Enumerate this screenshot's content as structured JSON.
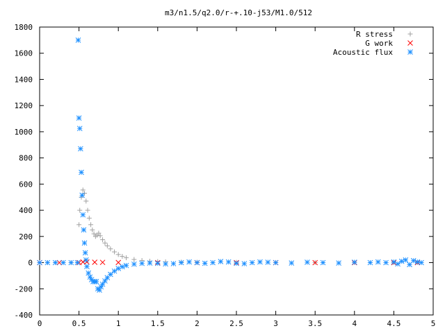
{
  "chart_data": {
    "type": "scatter",
    "title": "m3/n1.5/q2.0/r-+.10-j53/M1.0/512",
    "xlabel": "",
    "ylabel": "",
    "xlim": [
      0,
      5
    ],
    "ylim": [
      -400,
      1800
    ],
    "x_ticks": [
      "0",
      "0.5",
      "1",
      "1.5",
      "2",
      "2.5",
      "3",
      "3.5",
      "4",
      "4.5",
      "5"
    ],
    "y_ticks": [
      "-400",
      "-200",
      "0",
      "200",
      "400",
      "600",
      "800",
      "1000",
      "1200",
      "1400",
      "1600",
      "1800"
    ],
    "grid": false,
    "legend_position": "top-right",
    "series": [
      {
        "name": "R stress",
        "marker": "plus",
        "color": "#a0a0a0",
        "points": [
          [
            0.0,
            0
          ],
          [
            0.1,
            0
          ],
          [
            0.2,
            0
          ],
          [
            0.3,
            0
          ],
          [
            0.4,
            0
          ],
          [
            0.48,
            0
          ],
          [
            0.5,
            290
          ],
          [
            0.51,
            400
          ],
          [
            0.53,
            500
          ],
          [
            0.55,
            555
          ],
          [
            0.57,
            530
          ],
          [
            0.59,
            470
          ],
          [
            0.61,
            400
          ],
          [
            0.63,
            340
          ],
          [
            0.65,
            290
          ],
          [
            0.67,
            250
          ],
          [
            0.69,
            220
          ],
          [
            0.71,
            200
          ],
          [
            0.73,
            210
          ],
          [
            0.75,
            225
          ],
          [
            0.77,
            205
          ],
          [
            0.8,
            175
          ],
          [
            0.83,
            150
          ],
          [
            0.86,
            128
          ],
          [
            0.9,
            105
          ],
          [
            0.95,
            82
          ],
          [
            1.0,
            62
          ],
          [
            1.05,
            48
          ],
          [
            1.1,
            37
          ],
          [
            1.2,
            24
          ],
          [
            1.3,
            16
          ],
          [
            1.4,
            11
          ],
          [
            1.5,
            8
          ],
          [
            1.6,
            6
          ],
          [
            1.8,
            4
          ],
          [
            2.0,
            3
          ],
          [
            2.5,
            2
          ],
          [
            3.0,
            1
          ],
          [
            3.5,
            1
          ],
          [
            4.0,
            1
          ],
          [
            4.5,
            1
          ],
          [
            4.8,
            1
          ]
        ]
      },
      {
        "name": "G work",
        "marker": "cross",
        "color": "#ff0000",
        "points": [
          [
            0.0,
            0
          ],
          [
            0.25,
            0
          ],
          [
            0.5,
            0
          ],
          [
            0.55,
            5
          ],
          [
            0.6,
            5
          ],
          [
            0.7,
            3
          ],
          [
            0.8,
            2
          ],
          [
            1.0,
            1
          ],
          [
            1.5,
            0
          ],
          [
            2.0,
            0
          ],
          [
            2.5,
            0
          ],
          [
            3.0,
            0
          ],
          [
            3.5,
            0
          ],
          [
            4.0,
            0
          ],
          [
            4.5,
            0
          ],
          [
            4.8,
            0
          ]
        ]
      },
      {
        "name": "Acoustic flux",
        "marker": "star",
        "color": "#1e90ff",
        "points": [
          [
            0.0,
            0
          ],
          [
            0.1,
            0
          ],
          [
            0.2,
            0
          ],
          [
            0.3,
            0
          ],
          [
            0.4,
            0
          ],
          [
            0.48,
            0
          ],
          [
            0.49,
            1700
          ],
          [
            0.5,
            1105
          ],
          [
            0.51,
            1025
          ],
          [
            0.52,
            870
          ],
          [
            0.53,
            690
          ],
          [
            0.54,
            515
          ],
          [
            0.55,
            365
          ],
          [
            0.56,
            250
          ],
          [
            0.57,
            150
          ],
          [
            0.58,
            75
          ],
          [
            0.59,
            20
          ],
          [
            0.6,
            -30
          ],
          [
            0.62,
            -80
          ],
          [
            0.64,
            -110
          ],
          [
            0.66,
            -130
          ],
          [
            0.68,
            -145
          ],
          [
            0.7,
            -145
          ],
          [
            0.72,
            -145
          ],
          [
            0.74,
            -200
          ],
          [
            0.76,
            -210
          ],
          [
            0.78,
            -185
          ],
          [
            0.8,
            -165
          ],
          [
            0.83,
            -140
          ],
          [
            0.86,
            -115
          ],
          [
            0.9,
            -90
          ],
          [
            0.95,
            -65
          ],
          [
            1.0,
            -45
          ],
          [
            1.05,
            -32
          ],
          [
            1.1,
            -22
          ],
          [
            1.2,
            -12
          ],
          [
            1.3,
            -6
          ],
          [
            1.4,
            -3
          ],
          [
            1.5,
            -5
          ],
          [
            1.6,
            -10
          ],
          [
            1.7,
            -8
          ],
          [
            1.8,
            0
          ],
          [
            1.9,
            5
          ],
          [
            2.0,
            0
          ],
          [
            2.1,
            -5
          ],
          [
            2.2,
            0
          ],
          [
            2.3,
            8
          ],
          [
            2.4,
            5
          ],
          [
            2.5,
            -5
          ],
          [
            2.6,
            -8
          ],
          [
            2.7,
            0
          ],
          [
            2.8,
            5
          ],
          [
            2.9,
            3
          ],
          [
            3.0,
            0
          ],
          [
            3.2,
            -3
          ],
          [
            3.4,
            3
          ],
          [
            3.6,
            0
          ],
          [
            3.8,
            -3
          ],
          [
            4.0,
            3
          ],
          [
            4.2,
            0
          ],
          [
            4.3,
            5
          ],
          [
            4.4,
            0
          ],
          [
            4.5,
            5
          ],
          [
            4.55,
            -10
          ],
          [
            4.6,
            10
          ],
          [
            4.65,
            20
          ],
          [
            4.7,
            -15
          ],
          [
            4.75,
            15
          ],
          [
            4.8,
            5
          ],
          [
            4.85,
            0
          ]
        ]
      }
    ]
  }
}
